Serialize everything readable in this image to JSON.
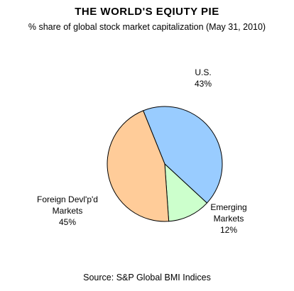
{
  "title": "THE WORLD'S EQIUTY PIE",
  "subtitle": "% share of global stock market capitalization (May 31, 2010)",
  "source": "Source: S&P Global BMI Indices",
  "chart_data": {
    "type": "pie",
    "title": "THE WORLD'S EQIUTY PIE",
    "subtitle": "% share of global stock market capitalization (May 31, 2010)",
    "unit": "%",
    "slices": [
      {
        "label": "U.S.",
        "value": 43,
        "color": "#99ccff"
      },
      {
        "label": "Emerging Markets",
        "value": 12,
        "color": "#ccffcc"
      },
      {
        "label": "Foreign Devl'p'd Markets",
        "value": 45,
        "color": "#ffcc99"
      }
    ],
    "labels": [
      {
        "lines": [
          "U.S.",
          "43%"
        ]
      },
      {
        "lines": [
          "Emerging",
          "Markets",
          "12%"
        ]
      },
      {
        "lines": [
          "Foreign Devl'p'd",
          "Markets",
          "45%"
        ]
      }
    ],
    "legend": "none",
    "source": "Source: S&P Global BMI Indices"
  }
}
